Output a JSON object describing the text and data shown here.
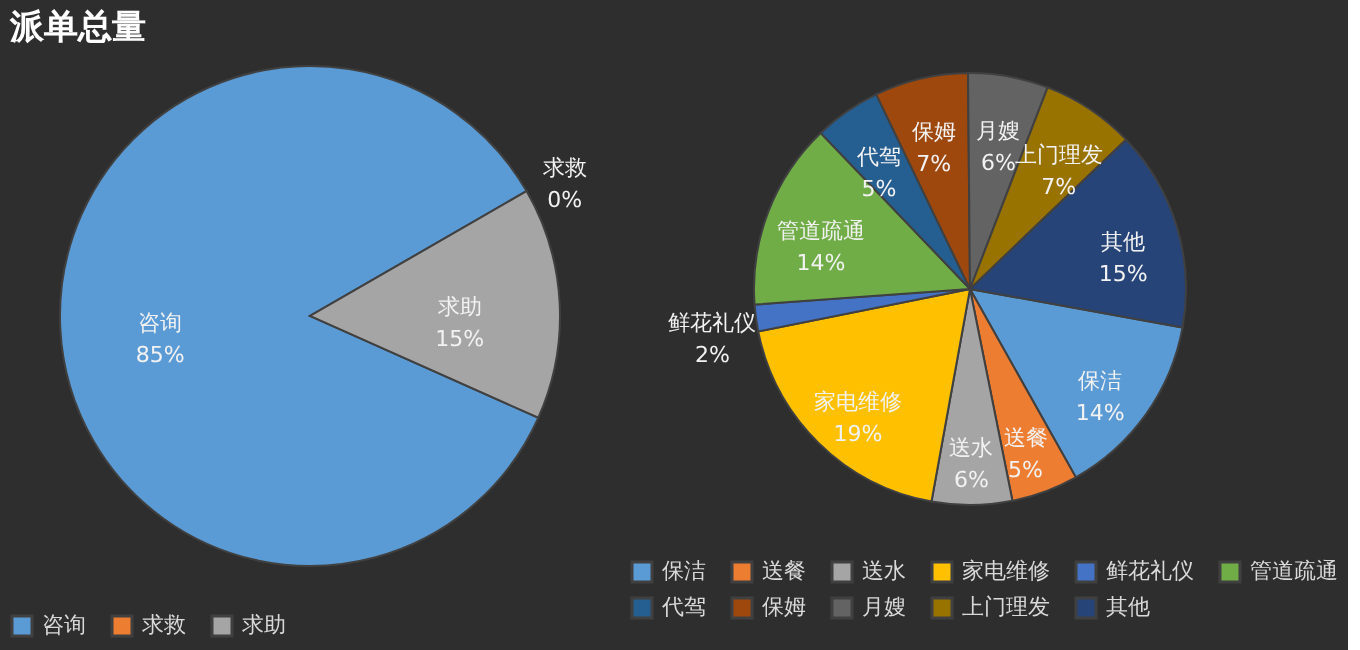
{
  "chart_data": [
    {
      "type": "pie",
      "title": "派单总量",
      "categories": [
        "咨询",
        "求救",
        "求助"
      ],
      "values": [
        85,
        0,
        15
      ],
      "colors": [
        "#5b9bd5",
        "#ed7d31",
        "#a5a5a5"
      ],
      "value_labels": [
        "85%",
        "0%",
        "15%"
      ],
      "legend": "bottom"
    },
    {
      "type": "pie",
      "categories": [
        "保洁",
        "送餐",
        "送水",
        "家电维修",
        "鲜花礼仪",
        "管道疏通",
        "代驾",
        "保姆",
        "月嫂",
        "上门理发",
        "其他"
      ],
      "values": [
        14,
        5,
        6,
        19,
        2,
        14,
        5,
        7,
        6,
        7,
        15
      ],
      "colors": [
        "#5b9bd5",
        "#ed7d31",
        "#a5a5a5",
        "#ffc000",
        "#4472c4",
        "#70ad47",
        "#255e91",
        "#9e480e",
        "#636363",
        "#997300",
        "#264478"
      ],
      "value_labels": [
        "14%",
        "5%",
        "6%",
        "19%",
        "2%",
        "14%",
        "5%",
        "7%",
        "6%",
        "7%",
        "15%"
      ],
      "legend": "bottom"
    }
  ]
}
